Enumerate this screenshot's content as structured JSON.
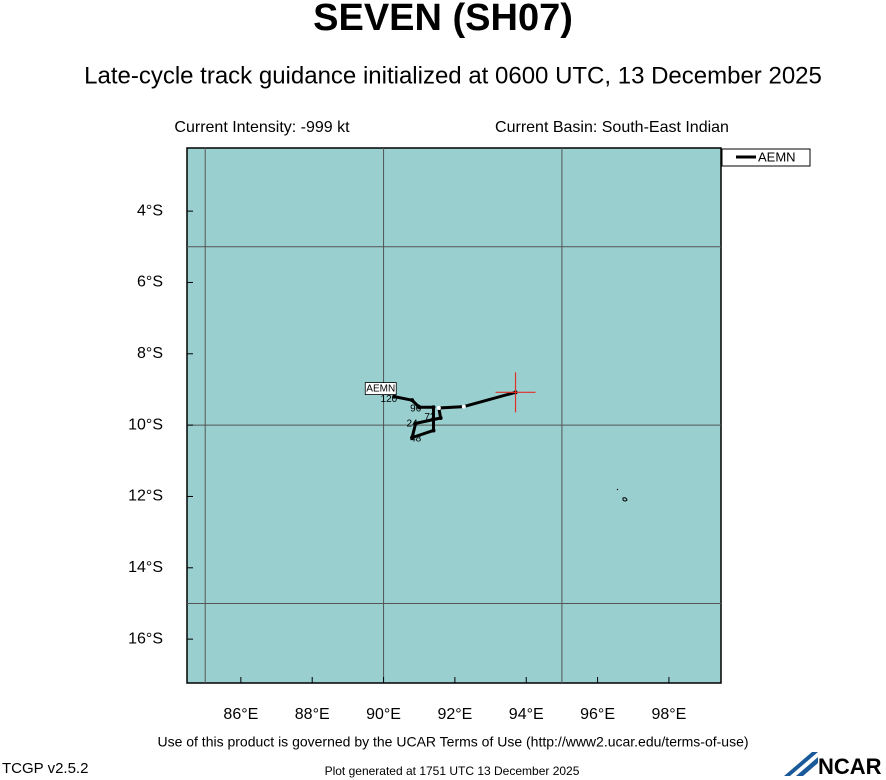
{
  "title": "SEVEN (SH07)",
  "subtitle": "Late-cycle track guidance initialized at 0600 UTC, 13 December 2025",
  "intensity": "Current Intensity: -999 kt",
  "basin": "Current Basin: South-East Indian",
  "map": {
    "xlim": [
      84.49,
      99.46
    ],
    "ylim": [
      -2.23,
      -17.23
    ],
    "xticks": [
      {
        "value": 86,
        "label": "86°E"
      },
      {
        "value": 88,
        "label": "88°E"
      },
      {
        "value": 90,
        "label": "90°E"
      },
      {
        "value": 92,
        "label": "92°E"
      },
      {
        "value": 94,
        "label": "94°E"
      },
      {
        "value": 96,
        "label": "96°E"
      },
      {
        "value": 98,
        "label": "98°E"
      }
    ],
    "yticks": [
      {
        "value": -4,
        "label": "4°S"
      },
      {
        "value": -6,
        "label": "6°S"
      },
      {
        "value": -8,
        "label": "8°S"
      },
      {
        "value": -10,
        "label": "10°S"
      },
      {
        "value": -12,
        "label": "12°S"
      },
      {
        "value": -14,
        "label": "14°S"
      },
      {
        "value": -16,
        "label": "16°S"
      }
    ],
    "grid_lon": [
      85,
      90,
      95
    ],
    "grid_lat": [
      -5,
      -10,
      -15
    ],
    "ocean_color": "#99cfcf",
    "current_position": {
      "lon": 93.7,
      "lat": -9.08,
      "color": "#e0302a"
    },
    "track": {
      "name": "AEMN",
      "color": "#000000",
      "lon": [
        93.7,
        92.25,
        91.55,
        91.6,
        90.9,
        90.8,
        91.4,
        91.4,
        91.0,
        90.8,
        90.3
      ],
      "lat": [
        -9.08,
        -9.48,
        -9.52,
        -9.8,
        -9.95,
        -10.35,
        -10.15,
        -9.5,
        -9.5,
        -9.3,
        -9.2
      ]
    },
    "hour_labels": [
      {
        "label": "24",
        "lon": 90.8,
        "lat": -9.97
      },
      {
        "label": "48",
        "lon": 90.9,
        "lat": -10.38
      },
      {
        "label": "72",
        "lon": 91.3,
        "lat": -9.78
      },
      {
        "label": "96",
        "lon": 90.9,
        "lat": -9.55
      },
      {
        "label": "120",
        "lon": 90.15,
        "lat": -9.28
      }
    ]
  },
  "legend": "AEMN",
  "terms": "Use of this product is governed by the UCAR Terms of Use (http://www2.ucar.edu/terms-of-use)",
  "version": "TCGP v2.5.2",
  "generated": "Plot generated at 1751 UTC   13 December 2025",
  "logo": "NCAR"
}
